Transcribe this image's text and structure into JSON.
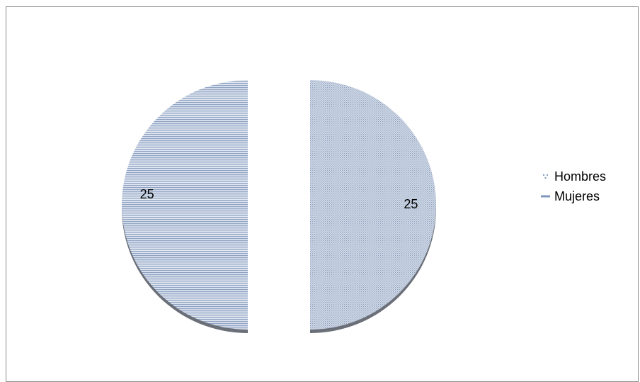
{
  "chart_data": {
    "type": "pie",
    "style": "3d-exploded",
    "categories": [
      "Hombres",
      "Mujeres"
    ],
    "values": [
      25,
      25
    ],
    "data_labels": [
      "25",
      "25"
    ],
    "title": "",
    "legend_position": "right",
    "colors": {
      "Hombres": "#c3cfe0",
      "Mujeres": "#9fb3d0",
      "edge": "#6b6f78"
    },
    "patterns": {
      "Hombres": "dotted",
      "Mujeres": "horizontal-lines"
    }
  }
}
